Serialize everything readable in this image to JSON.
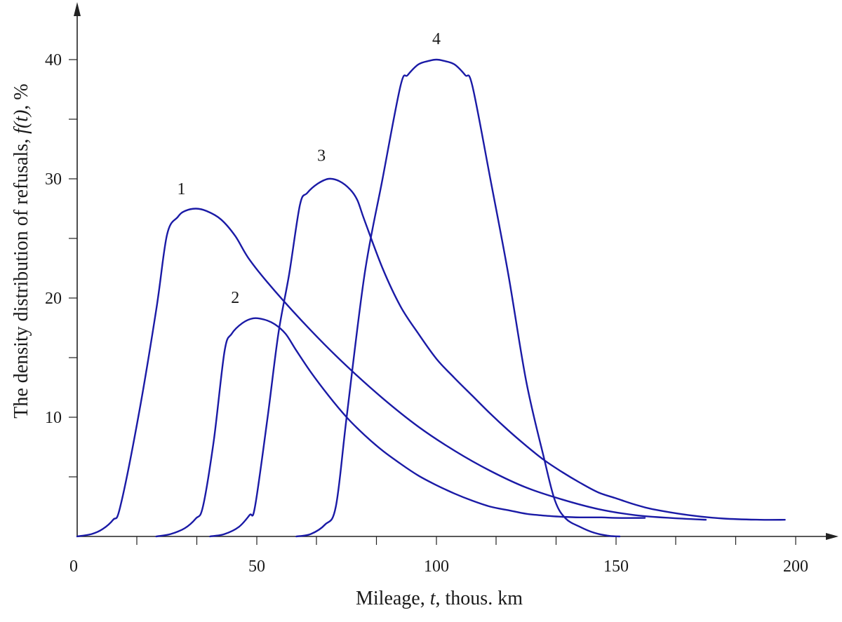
{
  "chart_data": {
    "type": "line",
    "xlabel": {
      "pre": "Mileage, ",
      "var": "t",
      "post": ", thous. km"
    },
    "ylabel": {
      "pre": "The density distribution of refusals, ",
      "var": "f(t)",
      "post": ", %"
    },
    "xlim": [
      0,
      210
    ],
    "ylim": [
      0,
      45
    ],
    "x_ticks": [
      0,
      50,
      100,
      150,
      200
    ],
    "x_minor_ticks": [
      16.6,
      33.3,
      66.6,
      83.3,
      116.6,
      133.3,
      166.6,
      183.3
    ],
    "y_ticks": [
      10,
      20,
      30,
      40
    ],
    "y_minor_ticks": [
      5,
      15,
      25,
      35
    ],
    "grid": false,
    "legend": "none",
    "series_color": "#1a1aa6",
    "series": [
      {
        "label": "1",
        "label_at": [
          29,
          28.7
        ],
        "points": [
          [
            0,
            0
          ],
          [
            4,
            0.2
          ],
          [
            7,
            0.6
          ],
          [
            10,
            1.4
          ],
          [
            12,
            2.5
          ],
          [
            17,
            10
          ],
          [
            22,
            19
          ],
          [
            25,
            25.3
          ],
          [
            28,
            26.8
          ],
          [
            30,
            27.3
          ],
          [
            33,
            27.5
          ],
          [
            36,
            27.3
          ],
          [
            40,
            26.6
          ],
          [
            44,
            25.2
          ],
          [
            48,
            23.2
          ],
          [
            55,
            20.6
          ],
          [
            65,
            17.3
          ],
          [
            75,
            14.3
          ],
          [
            85,
            11.6
          ],
          [
            95,
            9.2
          ],
          [
            105,
            7.2
          ],
          [
            115,
            5.5
          ],
          [
            125,
            4.1
          ],
          [
            135,
            3.1
          ],
          [
            145,
            2.3
          ],
          [
            155,
            1.8
          ],
          [
            165,
            1.55
          ],
          [
            175,
            1.4
          ]
        ]
      },
      {
        "label": "2",
        "label_at": [
          44,
          19.6
        ],
        "points": [
          [
            22,
            0
          ],
          [
            26,
            0.2
          ],
          [
            30,
            0.7
          ],
          [
            33,
            1.5
          ],
          [
            35,
            2.5
          ],
          [
            38,
            8
          ],
          [
            41,
            15.5
          ],
          [
            43,
            17
          ],
          [
            46,
            17.9
          ],
          [
            49,
            18.3
          ],
          [
            52,
            18.2
          ],
          [
            55,
            17.8
          ],
          [
            58,
            17
          ],
          [
            61,
            15.6
          ],
          [
            65,
            13.8
          ],
          [
            70,
            11.8
          ],
          [
            75,
            10
          ],
          [
            80,
            8.5
          ],
          [
            85,
            7.2
          ],
          [
            90,
            6.1
          ],
          [
            95,
            5.1
          ],
          [
            100,
            4.3
          ],
          [
            105,
            3.6
          ],
          [
            110,
            3.0
          ],
          [
            115,
            2.5
          ],
          [
            120,
            2.2
          ],
          [
            125,
            1.9
          ],
          [
            130,
            1.75
          ],
          [
            135,
            1.65
          ],
          [
            140,
            1.6
          ],
          [
            146,
            1.6
          ],
          [
            150,
            1.55
          ],
          [
            158,
            1.55
          ]
        ]
      },
      {
        "label": "3",
        "label_at": [
          68,
          31.5
        ],
        "points": [
          [
            37,
            0
          ],
          [
            41,
            0.2
          ],
          [
            45,
            0.8
          ],
          [
            48,
            1.8
          ],
          [
            49.5,
            2.5
          ],
          [
            53,
            10
          ],
          [
            56,
            17
          ],
          [
            59,
            22
          ],
          [
            62,
            27.8
          ],
          [
            64,
            28.8
          ],
          [
            67,
            29.6
          ],
          [
            70,
            30
          ],
          [
            73,
            29.8
          ],
          [
            76,
            29.1
          ],
          [
            78,
            28.2
          ],
          [
            80,
            26.5
          ],
          [
            85,
            22.5
          ],
          [
            90,
            19.3
          ],
          [
            95,
            17
          ],
          [
            100,
            14.9
          ],
          [
            105,
            13.3
          ],
          [
            110,
            11.8
          ],
          [
            115,
            10.3
          ],
          [
            120,
            8.9
          ],
          [
            125,
            7.6
          ],
          [
            130,
            6.4
          ],
          [
            135,
            5.4
          ],
          [
            140,
            4.5
          ],
          [
            145,
            3.7
          ],
          [
            150,
            3.2
          ],
          [
            155,
            2.7
          ],
          [
            160,
            2.3
          ],
          [
            170,
            1.8
          ],
          [
            180,
            1.5
          ],
          [
            190,
            1.4
          ],
          [
            197,
            1.4
          ]
        ]
      },
      {
        "label": "4",
        "label_at": [
          100,
          41.3
        ],
        "points": [
          [
            61,
            0
          ],
          [
            65,
            0.2
          ],
          [
            69,
            1
          ],
          [
            72,
            2.5
          ],
          [
            75,
            10
          ],
          [
            80,
            22
          ],
          [
            85,
            30
          ],
          [
            90,
            37.8
          ],
          [
            92,
            38.7
          ],
          [
            95,
            39.6
          ],
          [
            98,
            39.9
          ],
          [
            100,
            40
          ],
          [
            102,
            39.9
          ],
          [
            105,
            39.6
          ],
          [
            108,
            38.7
          ],
          [
            110,
            37.8
          ],
          [
            115,
            30
          ],
          [
            120,
            22
          ],
          [
            125,
            13
          ],
          [
            130,
            6.5
          ],
          [
            133,
            3
          ],
          [
            136,
            1.5
          ],
          [
            140,
            0.8
          ],
          [
            144,
            0.3
          ],
          [
            148,
            0.05
          ],
          [
            151,
            0
          ]
        ]
      }
    ]
  }
}
